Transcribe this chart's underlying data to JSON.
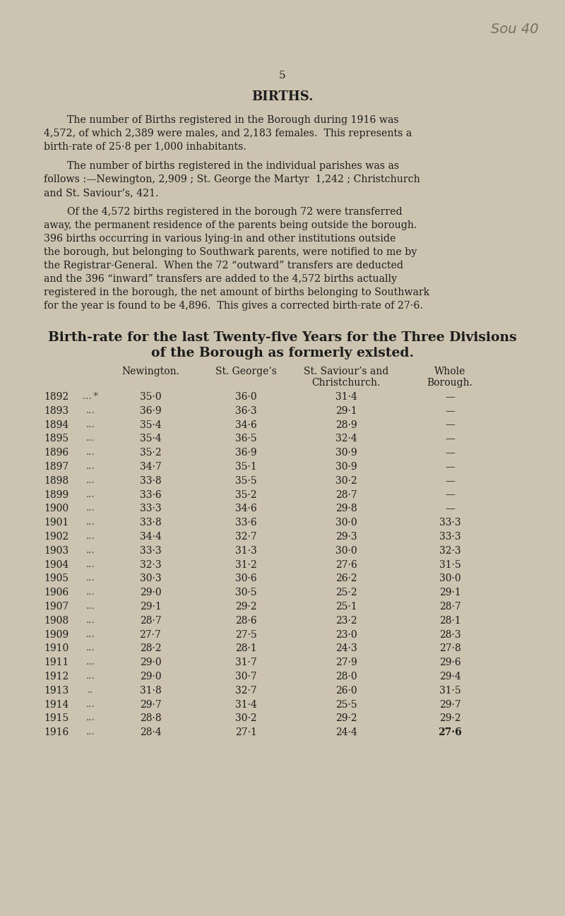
{
  "page_number": "5",
  "title": "BIRTHS.",
  "watermark": "Sou 40",
  "paragraph1_lines": [
    "The number of Births registered in the Borough during 1916 was",
    "4,572, of which 2,389 were males, and 2,183 females.  This represents a",
    "birth-rate of 25·8 per 1,000 inhabitants."
  ],
  "paragraph2_lines": [
    "The number of births registered in the individual parishes was as",
    "follows :—Newington, 2,909 ; St. George the Martyr  1,242 ; Christchurch",
    "and St. Saviour’s, 421."
  ],
  "paragraph3_lines": [
    "Of the 4,572 births registered in the borough 72 were transferred",
    "away, the permanent residence of the parents being outside the borough.",
    "396 births occurring in various lying-in and other institutions outside",
    "the borough, but belonging to Southwark parents, were notified to me by",
    "the Registrar-General.  When the 72 “outward” transfers are deducted",
    "and the 396 “inward” transfers are added to the 4,572 births actually",
    "registered in the borough, the net amount of births belonging to Southwark",
    "for the year is found to be 4,896.  This gives a corrected birth-rate of 27·6."
  ],
  "table_heading1": "Birth-rate for the last Twenty-five Years for the Three Divisions",
  "table_heading2": "of the Borough as formerly existed.",
  "years": [
    1892,
    1893,
    1894,
    1895,
    1896,
    1897,
    1898,
    1899,
    1900,
    1901,
    1902,
    1903,
    1904,
    1905,
    1906,
    1907,
    1908,
    1909,
    1910,
    1911,
    1912,
    1913,
    1914,
    1915,
    1916
  ],
  "newington": [
    "35·0",
    "36·9",
    "35·4",
    "35·4",
    "35·2",
    "34·7",
    "33·8",
    "33·6",
    "33·3",
    "33·8",
    "34·4",
    "33·3",
    "32·3",
    "30·3",
    "29·0",
    "29·1",
    "28·7",
    "27·7",
    "28·2",
    "29·0",
    "29·0",
    "31·8",
    "29·7",
    "28·8",
    "28·4"
  ],
  "st_georges": [
    "36·0",
    "36·3",
    "34·6",
    "36·5",
    "36·9",
    "35·1",
    "35·5",
    "35·2",
    "34·6",
    "33·6",
    "32·7",
    "31·3",
    "31·2",
    "30·6",
    "30·5",
    "29·2",
    "28·6",
    "27·5",
    "28·1",
    "31·7",
    "30·7",
    "32·7",
    "31·4",
    "30·2",
    "27·1"
  ],
  "st_saviours": [
    "31·4",
    "29·1",
    "28·9",
    "32·4",
    "30·9",
    "30·9",
    "30·2",
    "28·7",
    "29·8",
    "30·0",
    "29·3",
    "30·0",
    "27·6",
    "26·2",
    "25·2",
    "25·1",
    "23·2",
    "23·0",
    "24·3",
    "27·9",
    "28·0",
    "26·0",
    "25·5",
    "29·2",
    "24·4"
  ],
  "whole_borough": [
    "—",
    "—",
    "—",
    "—",
    "—",
    "—",
    "—",
    "—",
    "—",
    "33·3",
    "33·3",
    "32·3",
    "31·5",
    "30·0",
    "29·1",
    "28·7",
    "28·1",
    "28·3",
    "27·8",
    "29·6",
    "29·4",
    "31·5",
    "29·7",
    "29·2",
    "27·6"
  ],
  "dots_col": [
    "... *",
    "...",
    "...",
    "...",
    "...",
    "...",
    "...",
    "...",
    "...",
    "...",
    "...",
    "...",
    "...",
    "...",
    "...",
    "...",
    "...",
    "...",
    "...",
    "...",
    "...",
    "..",
    "...",
    "...",
    "..."
  ],
  "wb_dash_style": [
    "—",
    "—",
    "—",
    "—",
    "—",
    "—",
    "—",
    "—",
    "—"
  ],
  "bg_color": "#ccc4b0",
  "text_color": "#1c1c1c",
  "body_fontsize": 10.2,
  "table_fontsize": 10.0,
  "heading_fontsize": 13.5
}
